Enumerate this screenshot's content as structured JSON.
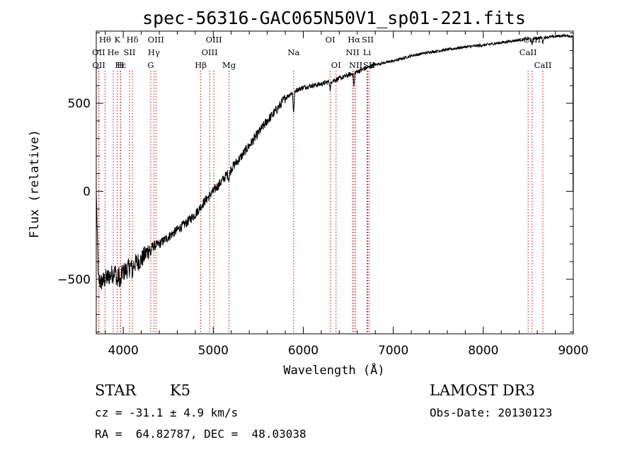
{
  "chart_data": {
    "type": "line",
    "title": "spec-56316-GAC065N50V1_sp01-221.fits",
    "xlabel": "Wavelength (Å)",
    "ylabel": "Flux (relative)",
    "xlim": [
      3700,
      9000
    ],
    "ylim": [
      -810,
      910
    ],
    "xticks": [
      4000,
      5000,
      6000,
      7000,
      8000,
      9000
    ],
    "yticks": [
      -500,
      0,
      500
    ],
    "color": "#000000",
    "line_color": "#cc0000",
    "spectrum_trend": {
      "x": [
        3700,
        3750,
        3800,
        3900,
        4000,
        4100,
        4200,
        4300,
        4400,
        4500,
        4600,
        4700,
        4800,
        4900,
        5000,
        5100,
        5200,
        5300,
        5400,
        5500,
        5600,
        5700,
        5800,
        5900,
        6000,
        6200,
        6400,
        6600,
        6800,
        7000,
        7200,
        7400,
        7600,
        7800,
        8000,
        8200,
        8400,
        8600,
        8800,
        8900,
        8980
      ],
      "y": [
        -480,
        -520,
        -500,
        -460,
        -460,
        -420,
        -390,
        -320,
        -300,
        -260,
        -220,
        -180,
        -130,
        -60,
        0,
        60,
        130,
        190,
        260,
        330,
        400,
        460,
        530,
        570,
        590,
        610,
        640,
        680,
        720,
        740,
        770,
        790,
        805,
        820,
        830,
        845,
        860,
        870,
        880,
        885,
        880
      ]
    },
    "spectral_lines": [
      {
        "name": "Hθ",
        "wavelength": 3798,
        "row": 0
      },
      {
        "name": "K",
        "wavelength": 3934,
        "row": 0
      },
      {
        "name": "Hδ",
        "wavelength": 4102,
        "row": 0
      },
      {
        "name": "OIII",
        "wavelength": 4363,
        "row": 0
      },
      {
        "name": "OIII",
        "wavelength": 5007,
        "row": 0
      },
      {
        "name": "OI",
        "wavelength": 6300,
        "row": 0
      },
      {
        "name": "Hα",
        "wavelength": 6563,
        "row": 0
      },
      {
        "name": "SII",
        "wavelength": 6716,
        "row": 0
      },
      {
        "name": "CaII",
        "wavelength": 8542,
        "row": 0
      },
      {
        "name": "OII",
        "wavelength": 3727,
        "row": 1
      },
      {
        "name": "He",
        "wavelength": 3889,
        "row": 1
      },
      {
        "name": "SII",
        "wavelength": 4069,
        "row": 1
      },
      {
        "name": "Hγ",
        "wavelength": 4340,
        "row": 1
      },
      {
        "name": "OIII",
        "wavelength": 4959,
        "row": 1
      },
      {
        "name": "Na",
        "wavelength": 5893,
        "row": 1
      },
      {
        "name": "NII",
        "wavelength": 6548,
        "row": 1
      },
      {
        "name": "Li",
        "wavelength": 6708,
        "row": 1
      },
      {
        "name": "CaII",
        "wavelength": 8498,
        "row": 1
      },
      {
        "name": "OII",
        "wavelength": 3729,
        "row": 2
      },
      {
        "name": "Hε",
        "wavelength": 3970,
        "row": 2
      },
      {
        "name": "H",
        "wavelength": 3968,
        "row": 2
      },
      {
        "name": "G",
        "wavelength": 4305,
        "row": 2
      },
      {
        "name": "Hβ",
        "wavelength": 4861,
        "row": 2
      },
      {
        "name": "Mg",
        "wavelength": 5175,
        "row": 2
      },
      {
        "name": "OI",
        "wavelength": 6364,
        "row": 2
      },
      {
        "name": "NII",
        "wavelength": 6583,
        "row": 2
      },
      {
        "name": "SII",
        "wavelength": 6731,
        "row": 2
      },
      {
        "name": "CaII",
        "wavelength": 8662,
        "row": 2
      }
    ]
  },
  "info": {
    "object_class": "STAR",
    "subclass": "K5",
    "survey": "LAMOST DR3",
    "redshift": "cz = -31.1 ± 4.9 km/s",
    "obs_date": "Obs-Date: 20130123",
    "coords": "RA =  64.82787, DEC =  48.03038"
  }
}
